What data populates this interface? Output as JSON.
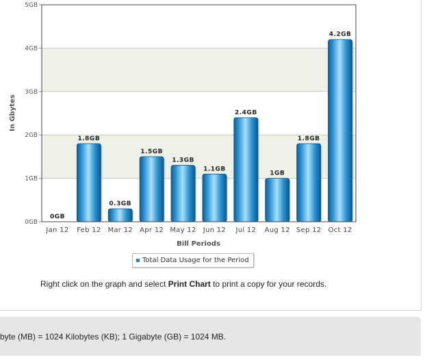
{
  "chart_data": {
    "type": "bar",
    "categories": [
      "Jan 12",
      "Feb 12",
      "Mar 12",
      "Apr 12",
      "May 12",
      "Jun 12",
      "Jul 12",
      "Aug 12",
      "Sep 12",
      "Oct 12"
    ],
    "values": [
      0,
      1.8,
      0.3,
      1.5,
      1.3,
      1.1,
      2.4,
      1,
      1.8,
      4.2
    ],
    "value_labels": [
      "0GB",
      "1.8GB",
      "0.3GB",
      "1.5GB",
      "1.3GB",
      "1.1GB",
      "2.4GB",
      "1GB",
      "1.8GB",
      "4.2GB"
    ],
    "y_ticks": [
      "0GB",
      "1GB",
      "2GB",
      "3GB",
      "4GB",
      "5GB"
    ],
    "ylim": [
      0,
      5
    ],
    "xlabel": "Bill Periods",
    "ylabel": "In Gbytes",
    "legend": [
      "Total Data Usage for the Period"
    ],
    "legend_position": "bottom-center",
    "grid": true,
    "bar_color": "#2a90d0",
    "band_color": "#eef1e6"
  },
  "instruction": {
    "prefix": "Right click on the graph and select ",
    "bold": "Print Chart",
    "suffix": " to print a copy for your records."
  },
  "footnote": {
    "text": "byte (MB) = 1024 Kilobytes (KB); 1 Gigabyte (GB) = 1024 MB."
  }
}
